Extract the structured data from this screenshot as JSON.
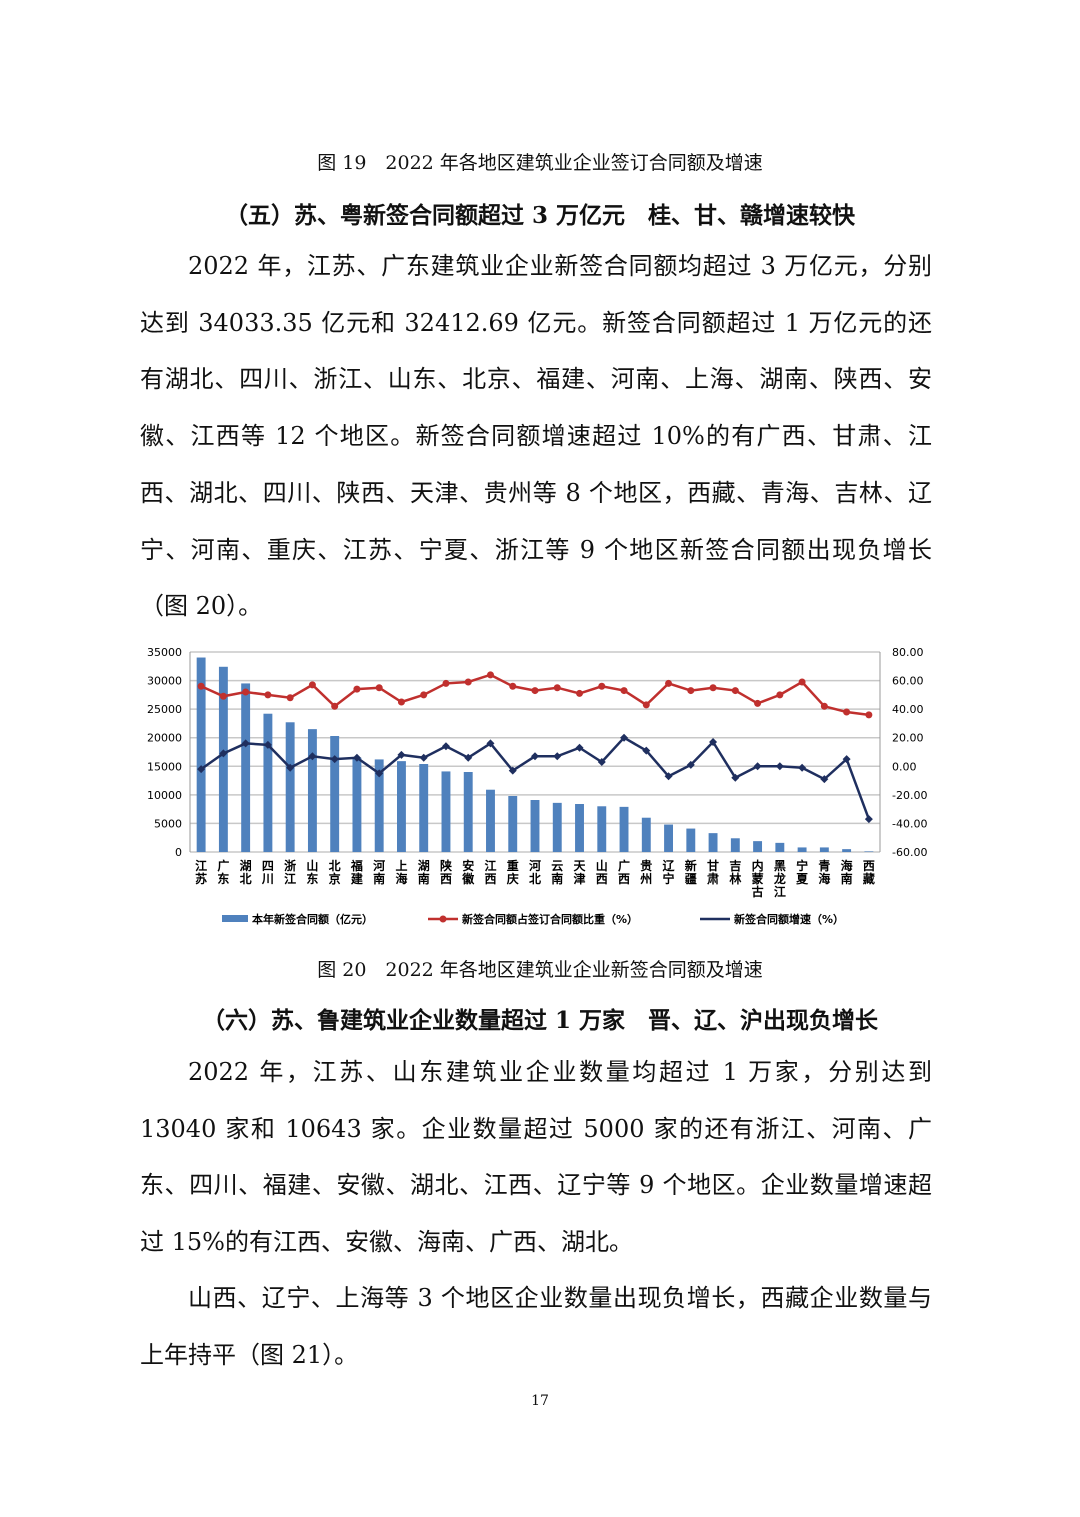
{
  "fig19_caption": "图 19　2022 年各地区建筑业企业签订合同额及增速",
  "section5_heading": "（五）苏、粤新签合同额超过 3 万亿元　桂、甘、赣增速较快",
  "section5_paragraph": "2022 年，江苏、广东建筑业企业新签合同额均超过 3 万亿元，分别达到 34033.35 亿元和 32412.69 亿元。新签合同额超过 1 万亿元的还有湖北、四川、浙江、山东、北京、福建、河南、上海、湖南、陕西、安徽、江西等 12 个地区。新签合同额增速超过 10%的有广西、甘肃、江西、湖北、四川、陕西、天津、贵州等 8 个地区，西藏、青海、吉林、辽宁、河南、重庆、江苏、宁夏、浙江等 9 个地区新签合同额出现负增长（图 20）。",
  "fig20_caption": "图 20　2022 年各地区建筑业企业新签合同额及增速",
  "section6_heading": "（六）苏、鲁建筑业企业数量超过 1 万家　晋、辽、沪出现负增长",
  "section6_paragraph1": "2022 年，江苏、山东建筑业企业数量均超过 1 万家，分别达到 13040 家和 10643 家。企业数量超过 5000 家的还有浙江、河南、广东、四川、福建、安徽、湖北、江西、辽宁等 9 个地区。企业数量增速超过 15%的有江西、安徽、海南、广西、湖北。",
  "section6_paragraph2": "山西、辽宁、上海等 3 个地区企业数量出现负增长，西藏企业数量与上年持平（图 21）。",
  "page_number": "17",
  "chart_data": {
    "type": "bar+line",
    "categories": [
      "江苏",
      "广东",
      "湖北",
      "四川",
      "浙江",
      "山东",
      "北京",
      "福建",
      "河南",
      "上海",
      "湖南",
      "陕西",
      "安徽",
      "江西",
      "重庆",
      "河北",
      "云南",
      "天津",
      "山西",
      "广西",
      "贵州",
      "辽宁",
      "新疆",
      "甘肃",
      "吉林",
      "内蒙古",
      "黑龙江",
      "宁夏",
      "青海",
      "海南",
      "西藏"
    ],
    "series": [
      {
        "name": "本年新签合同额（亿元）",
        "type": "bar",
        "axis": "left",
        "color": "#4f81bd",
        "values": [
          34033,
          32413,
          29500,
          24200,
          22700,
          21500,
          20300,
          16500,
          16200,
          15900,
          15400,
          14100,
          14000,
          10900,
          9800,
          9100,
          8600,
          8400,
          8000,
          7900,
          6000,
          4800,
          4100,
          3300,
          2400,
          1900,
          1600,
          800,
          800,
          500,
          100
        ]
      },
      {
        "name": "新签合同额占签订合同额比重（%）",
        "type": "line",
        "axis": "right",
        "color": "#c0302e",
        "values": [
          56,
          49,
          52,
          50,
          48,
          57,
          42,
          54,
          55,
          45,
          50,
          58,
          59,
          64,
          56,
          53,
          55,
          51,
          56,
          53,
          43,
          58,
          53,
          55,
          53,
          44,
          50,
          59,
          42,
          38,
          36
        ]
      },
      {
        "name": "新签合同额增速（%）",
        "type": "line",
        "axis": "right",
        "color": "#1f2f5f",
        "values": [
          -2,
          9,
          16,
          15,
          -1,
          7,
          5,
          6,
          -5,
          8,
          6,
          14,
          6,
          16,
          -3,
          7,
          7,
          13,
          3,
          20,
          11,
          -7,
          1,
          17,
          -8,
          0,
          0,
          -1,
          -9,
          5,
          -37
        ]
      }
    ],
    "yleft": {
      "range": [
        0,
        35000
      ],
      "ticks": [
        "0",
        "5000",
        "10000",
        "15000",
        "20000",
        "25000",
        "30000",
        "35000"
      ]
    },
    "yright": {
      "range": [
        -60,
        80
      ],
      "ticks": [
        "-60.00",
        "-40.00",
        "-20.00",
        "0.00",
        "20.00",
        "40.00",
        "60.00",
        "80.00"
      ]
    },
    "grid": true,
    "legend": "bottom"
  }
}
